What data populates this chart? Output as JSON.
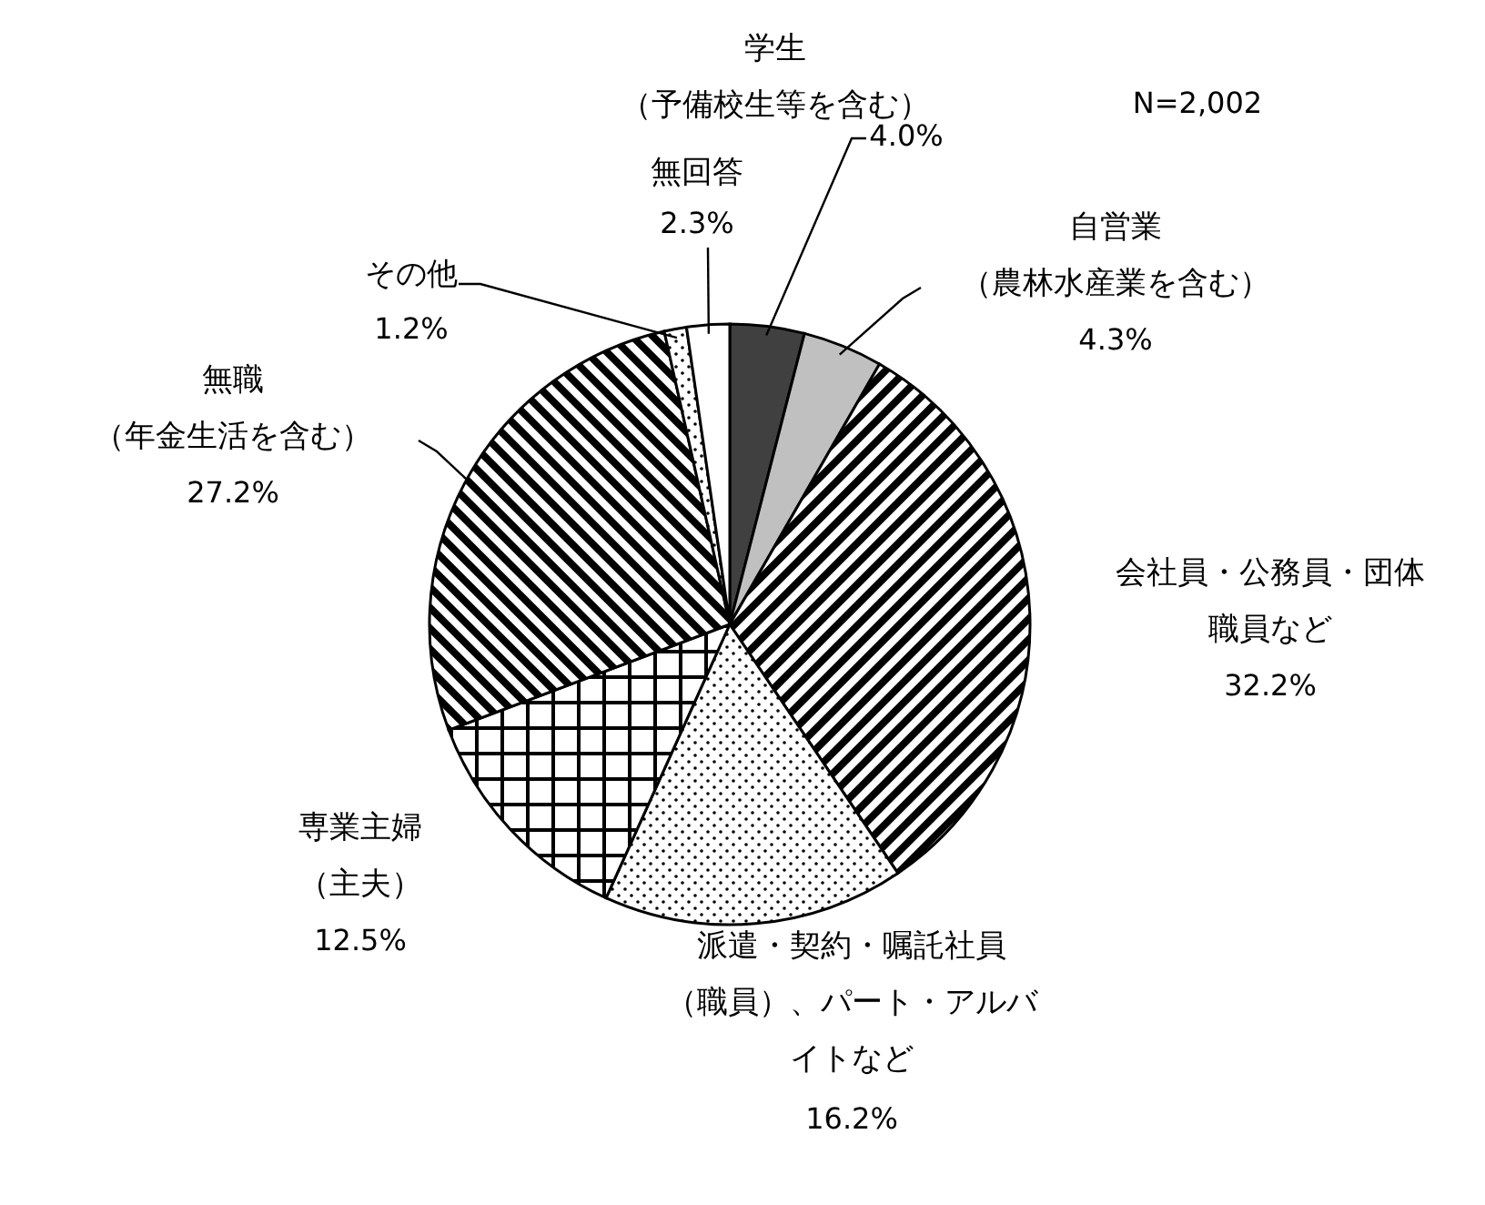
{
  "chart_data": {
    "type": "pie",
    "categories": [
      "学生（予備校生等を含む）",
      "自営業（農林水産業を含む）",
      "会社員・公務員・団体職員など",
      "派遣・契約・嘱託社員（職員）、パート・アルバイトなど",
      "専業主婦（主夫）",
      "無職（年金生活を含む）",
      "その他",
      "無回答"
    ],
    "values": [
      4.0,
      4.3,
      32.2,
      16.2,
      12.5,
      27.2,
      1.2,
      2.3
    ],
    "value_labels": [
      "4.0%",
      "4.3%",
      "32.2%",
      "16.2%",
      "12.5%",
      "27.2%",
      "1.2%",
      "2.3%"
    ],
    "colors": [
      "#404040",
      "#c0c0c0",
      "#000000",
      "#000000",
      "#000000",
      "#000000",
      "#000000",
      "#ffffff"
    ],
    "annotations": [
      "N=2,002"
    ]
  }
}
